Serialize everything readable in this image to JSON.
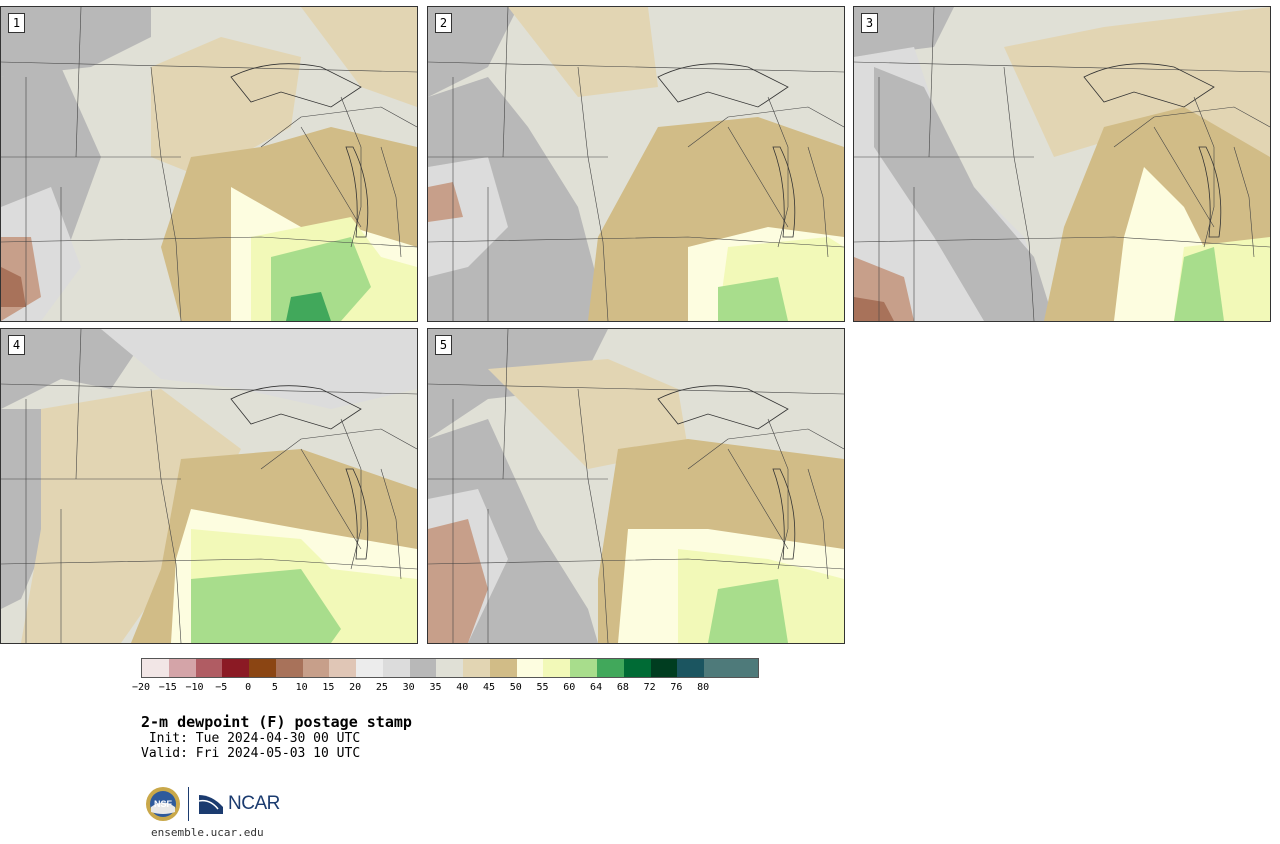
{
  "panels": [
    {
      "number": "1"
    },
    {
      "number": "2"
    },
    {
      "number": "3"
    },
    {
      "number": "4"
    },
    {
      "number": "5"
    }
  ],
  "colorbar": {
    "colors": [
      "#f2e6e6",
      "#d4a4a8",
      "#b05c63",
      "#8b1a24",
      "#8b4513",
      "#a8725a",
      "#c79f8a",
      "#e0c6b6",
      "#ececec",
      "#dcdcdc",
      "#b8b8b8",
      "#e0e0d6",
      "#e2d5b3",
      "#d1bc87",
      "#fdfde0",
      "#f2f9b8",
      "#a8dd8c",
      "#41a85b",
      "#006b35",
      "#003d20",
      "#1b5560",
      "#4e7a7a",
      "#4e7a7a"
    ],
    "tick_labels": [
      "−20",
      "−15",
      "−10",
      "−5",
      "0",
      "5",
      "10",
      "15",
      "20",
      "25",
      "30",
      "35",
      "40",
      "45",
      "50",
      "55",
      "60",
      "64",
      "68",
      "72",
      "76",
      "80"
    ]
  },
  "title": "2-m dewpoint (F) postage stamp",
  "init": " Init: Tue 2024-04-30 00 UTC",
  "valid": "Valid: Fri 2024-05-03 10 UTC",
  "logo": {
    "nsf": "NSF",
    "ncar": "NCAR"
  },
  "site": "ensemble.ucar.edu"
}
